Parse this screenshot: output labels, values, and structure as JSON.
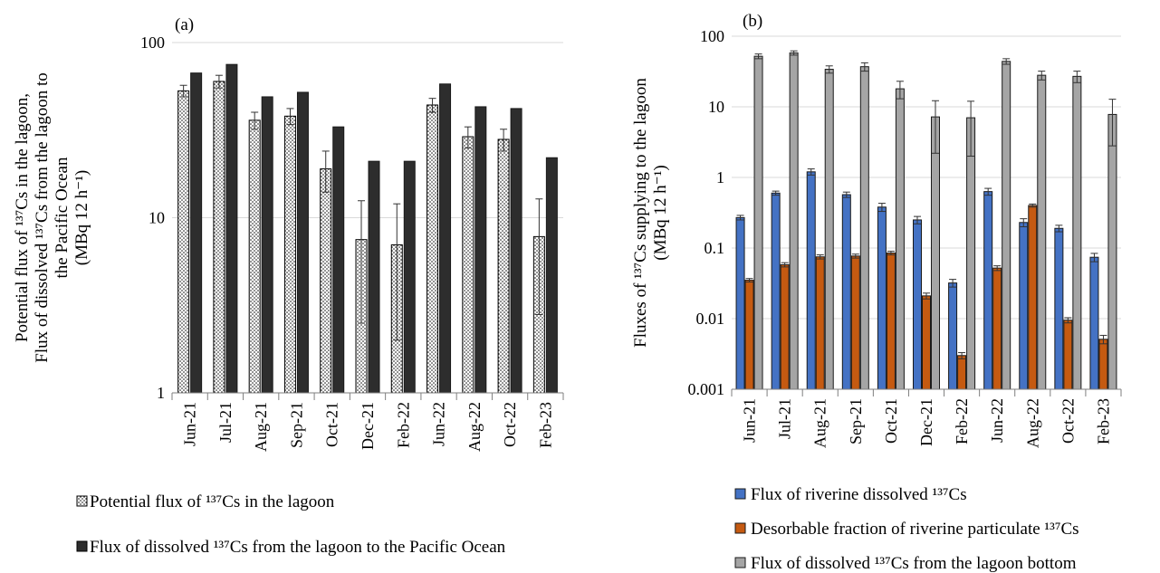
{
  "chart_data": [
    {
      "type": "bar",
      "panel_label": "(a)",
      "ylabel_lines": [
        "Potential flux of ¹³⁷Cs in the lagoon,",
        "Flux of dissolved ¹³⁷Cs from the lagoon to",
        "the Pacific Ocean",
        "(MBq 12 h⁻¹)"
      ],
      "yscale": "log",
      "ylim": [
        1,
        100
      ],
      "y_ticks": [
        "1",
        "10",
        "100"
      ],
      "grid": true,
      "legend_position": "bottom-left",
      "categories": [
        "Jun-21",
        "Jul-21",
        "Aug-21",
        "Sep-21",
        "Oct-21",
        "Dec-21",
        "Feb-22",
        "Jun-22",
        "Aug-22",
        "Oct-22",
        "Feb-23"
      ],
      "series": [
        {
          "name": "Potential flux of ¹³⁷Cs in the lagoon",
          "color": "#ffffff",
          "pattern": "dotted",
          "values": [
            53,
            60,
            36,
            38,
            19,
            7.5,
            7,
            44,
            29,
            28,
            7.8
          ],
          "err_low": [
            4,
            5,
            4,
            4,
            5,
            5,
            5,
            4,
            4,
            4,
            5
          ],
          "err_high": [
            4,
            5,
            4,
            4,
            5,
            5,
            5,
            4,
            4,
            4,
            5
          ]
        },
        {
          "name": "Flux of dissolved ¹³⁷Cs from the lagoon to the Pacific Ocean",
          "color": "#2d2d2d",
          "values": [
            67,
            75,
            49,
            52,
            33,
            21,
            21,
            58,
            43,
            42,
            22
          ]
        }
      ]
    },
    {
      "type": "bar",
      "panel_label": "(b)",
      "ylabel_lines": [
        "Fluxes of ¹³⁷Cs supplying to the lagoon",
        "(MBq 12 h⁻¹)"
      ],
      "yscale": "log",
      "ylim": [
        0.001,
        100
      ],
      "y_ticks": [
        "0.001",
        "0.01",
        "0.1",
        "1",
        "10",
        "100"
      ],
      "grid": true,
      "legend_position": "bottom",
      "categories": [
        "Jun-21",
        "Jul-21",
        "Aug-21",
        "Sep-21",
        "Oct-21",
        "Dec-21",
        "Feb-22",
        "Jun-22",
        "Aug-22",
        "Oct-22",
        "Feb-23"
      ],
      "series": [
        {
          "name": "Flux of riverine dissolved ¹³⁷Cs",
          "color": "#4472c4",
          "values": [
            0.27,
            0.6,
            1.2,
            0.57,
            0.38,
            0.25,
            0.032,
            0.63,
            0.23,
            0.19,
            0.074
          ],
          "err_low": [
            0.02,
            0.04,
            0.12,
            0.05,
            0.05,
            0.03,
            0.004,
            0.07,
            0.03,
            0.02,
            0.01
          ],
          "err_high": [
            0.02,
            0.04,
            0.12,
            0.05,
            0.05,
            0.03,
            0.004,
            0.07,
            0.03,
            0.02,
            0.01
          ]
        },
        {
          "name": "Desorbable fraction of riverine particulate ¹³⁷Cs",
          "color": "#c55a11",
          "values": [
            0.035,
            0.058,
            0.075,
            0.077,
            0.085,
            0.021,
            0.003,
            0.052,
            0.4,
            0.0095,
            0.0051
          ],
          "err_low": [
            0.002,
            0.004,
            0.005,
            0.005,
            0.005,
            0.002,
            0.0003,
            0.004,
            0.02,
            0.0008,
            0.0007
          ],
          "err_high": [
            0.002,
            0.004,
            0.005,
            0.005,
            0.005,
            0.002,
            0.0003,
            0.004,
            0.02,
            0.0008,
            0.0007
          ]
        },
        {
          "name": "Flux of dissolved ¹³⁷Cs from the lagoon bottom",
          "color": "#a5a5a5",
          "values": [
            52,
            58,
            34,
            37,
            18,
            7.2,
            7,
            44,
            28,
            27,
            7.8
          ],
          "err_low": [
            4,
            4,
            4,
            5,
            5,
            5,
            5,
            4,
            4,
            5,
            5
          ],
          "err_high": [
            4,
            4,
            4,
            5,
            5,
            5,
            5,
            4,
            4,
            5,
            5
          ]
        }
      ]
    }
  ]
}
